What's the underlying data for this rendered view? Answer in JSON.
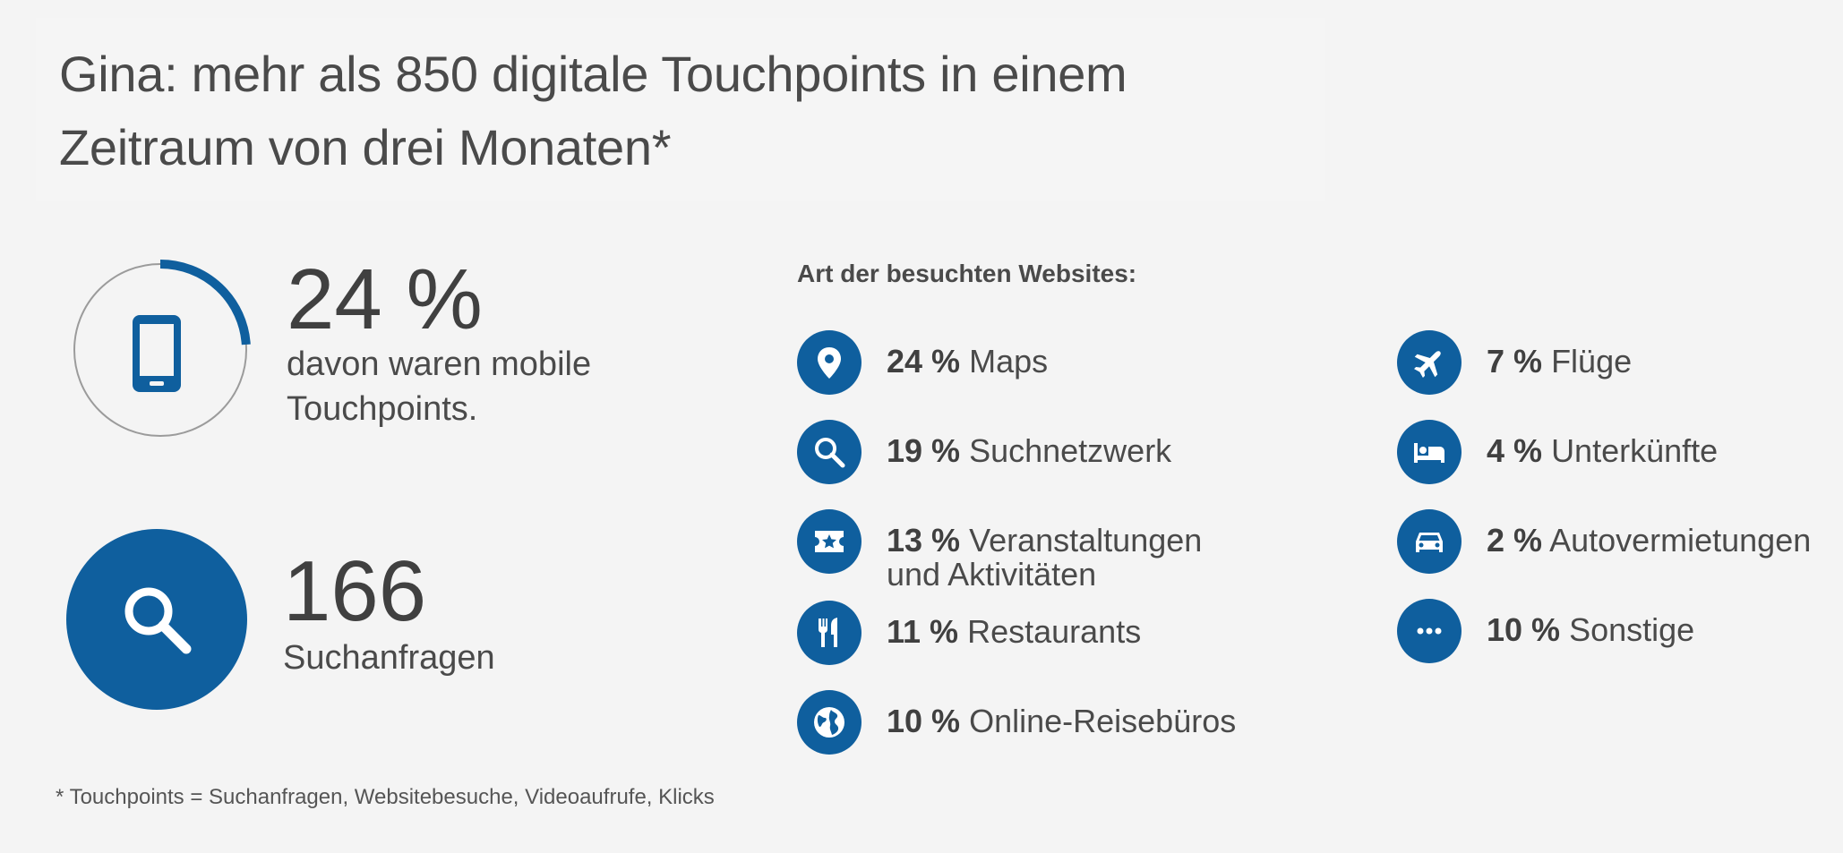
{
  "title": "Gina: mehr als 850 digitale Touchpoints in einem Zeitraum von drei Monaten*",
  "mobile": {
    "value": "24 %",
    "caption": "davon waren mobile Touchpoints.",
    "share": 0.24,
    "icon": "smartphone-icon"
  },
  "searches": {
    "value": "166",
    "caption": "Suchanfragen",
    "icon": "search-icon"
  },
  "websites": {
    "heading": "Art der besuchten Websites:",
    "items": [
      {
        "percent": "24 %",
        "label": "Maps",
        "icon": "map-pin-icon"
      },
      {
        "percent": "19 %",
        "label": "Suchnetzwerk",
        "icon": "search-icon"
      },
      {
        "percent": "13 %",
        "label": "Veranstaltungen und Aktivitäten",
        "icon": "ticket-icon"
      },
      {
        "percent": "11 %",
        "label": "Restaurants",
        "icon": "restaurant-icon"
      },
      {
        "percent": "10 %",
        "label": "Online-Reisebüros",
        "icon": "globe-icon"
      },
      {
        "percent": "7 %",
        "label": "Flüge",
        "icon": "airplane-icon"
      },
      {
        "percent": "4 %",
        "label": "Unterkünfte",
        "icon": "bed-icon"
      },
      {
        "percent": "2 %",
        "label": "Autovermietungen",
        "icon": "car-icon"
      },
      {
        "percent": "10 %",
        "label": "Sonstige",
        "icon": "more-dots-icon"
      }
    ]
  },
  "footnote": "* Touchpoints = Suchanfragen, Websitebesuche, Videoaufrufe, Klicks",
  "colors": {
    "accent": "#0f5f9e",
    "ring": "#9b9b9b",
    "text": "#4a4a4a",
    "background": "#f4f4f4"
  }
}
